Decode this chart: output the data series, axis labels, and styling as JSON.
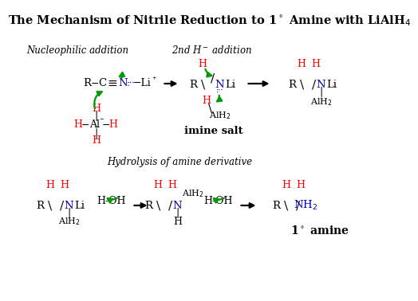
{
  "title": "The Mechanism of Nitrile Reduction to 1° Amine with LiAlH₄",
  "red": "#ff0000",
  "blue": "#0000bb",
  "green": "#009900",
  "black": "#000000",
  "white": "#ffffff"
}
